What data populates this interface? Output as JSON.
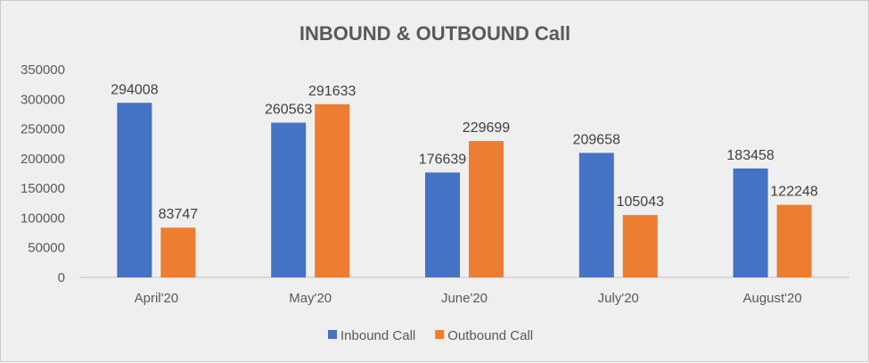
{
  "chart_data": {
    "type": "bar",
    "title": "INBOUND & OUTBOUND Call",
    "xlabel": "",
    "ylabel": "",
    "categories": [
      "April'20",
      "May'20",
      "June'20",
      "July'20",
      "August'20"
    ],
    "series": [
      {
        "name": "Inbound Call",
        "color": "#4472c4",
        "values": [
          294008,
          260563,
          176639,
          209658,
          183458
        ]
      },
      {
        "name": "Outbound Call",
        "color": "#ed7d31",
        "values": [
          83747,
          291633,
          229699,
          105043,
          122248
        ]
      }
    ],
    "ylim": [
      0,
      350000
    ],
    "yticks": [
      0,
      50000,
      100000,
      150000,
      200000,
      250000,
      300000,
      350000
    ],
    "grid": false,
    "data_labels": true,
    "legend_position": "bottom"
  }
}
